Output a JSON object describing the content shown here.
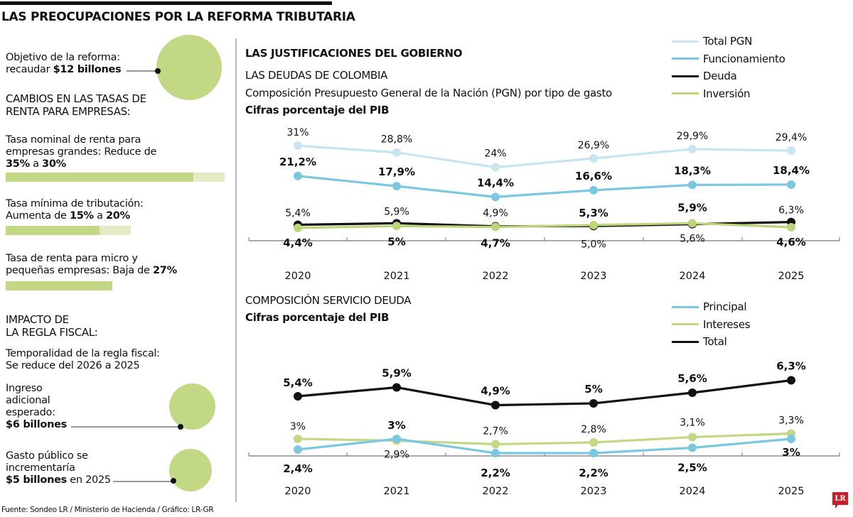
{
  "header": {
    "title": "LAS PREOCUPACIONES POR LA REFORMA TRIBUTARIA"
  },
  "left_panel": {
    "objective": {
      "line1": "Objetivo de la reforma:",
      "line2_prefix": "recaudar ",
      "line2_bold": "$12 billones"
    },
    "rates_heading": {
      "line1": "CAMBIOS EN LAS TASAS DE",
      "line2": "RENTA PARA EMPRESAS:"
    },
    "rates": [
      {
        "line1": "Tasa nominal de renta para",
        "line2": "empresas grandes: Reduce de",
        "from_bold": "35%",
        "connector": " a ",
        "to_bold": "30%",
        "bar_value": 30,
        "bar_max": 35
      },
      {
        "line1": "Tasa mínima de tributación:",
        "line2_prefix": "Aumenta de ",
        "from_bold": "15%",
        "connector": " a ",
        "to_bold": "20%",
        "bar_value": 15,
        "bar_max": 20
      },
      {
        "line1": "Tasa de renta para micro y",
        "line2_prefix": "pequeñas empresas: Baja de ",
        "value_bold": "27%",
        "bar_value": 27
      }
    ],
    "fiscal_heading": {
      "line1": "IMPACTO DE",
      "line2": "LA REGLA FISCAL:"
    },
    "fiscal_temporality": {
      "line1": "Temporalidad de la regla fiscal:",
      "line2": "Se reduce del 2026 a 2025"
    },
    "additional_income": {
      "line1": "Ingreso",
      "line2": "adicional",
      "line3": "esperado:",
      "bold": "$6 billones"
    },
    "public_spending": {
      "line1": "Gasto público se",
      "line2": "incrementaría",
      "bold": "$5 billones",
      "suffix": " en 2025"
    }
  },
  "right_panel": {
    "heading": "LAS JUSTIFICACIONES DEL GOBIERNO",
    "chart1_title": "LAS DEUDAS DE COLOMBIA",
    "chart1_subtitle": "Composición Presupuesto General de la Nación (PGN) por tipo de gasto",
    "chart1_units": "Cifras porcentaje del PIB",
    "chart2_title": "COMPOSICIÓN SERVICIO DEUDA",
    "chart2_units": "Cifras porcentaje del PIB"
  },
  "footer": {
    "source": "Fuente: Sondeo LR / Ministerio de Hacienda / Gráfico: LR-GR",
    "logo": "LR"
  },
  "colors": {
    "green": "#c2d885",
    "green_light": "#e3ecc4",
    "total_pgn": "#c6e5f1",
    "funcionamiento": "#7cc7e0",
    "deuda": "#111111",
    "inversion": "#bcd57a",
    "principal": "#7cc7e0",
    "intereses": "#c2d885",
    "total": "#111111",
    "logo_red": "#c8202a"
  },
  "chart_data": [
    {
      "type": "line",
      "title": "LAS DEUDAS DE COLOMBIA",
      "subtitle": "Composición Presupuesto General de la Nación (PGN) por tipo de gasto",
      "ylabel": "Cifras porcentaje del PIB",
      "xlabel": "",
      "categories": [
        "2020",
        "2021",
        "2022",
        "2023",
        "2024",
        "2025"
      ],
      "ylim": [
        0,
        32
      ],
      "grid": false,
      "legend_position": "top-right",
      "series": [
        {
          "name": "Total PGN",
          "color": "#c6e5f1",
          "values": [
            31,
            28.8,
            24,
            26.9,
            29.9,
            29.4
          ],
          "labels": [
            "31%",
            "28,8%",
            "24%",
            "26,9%",
            "29,9%",
            "29,4%"
          ],
          "label_bold": false
        },
        {
          "name": "Funcionamiento",
          "color": "#7cc7e0",
          "values": [
            21.2,
            17.9,
            14.4,
            16.6,
            18.3,
            18.4
          ],
          "labels": [
            "21,2%",
            "17,9%",
            "14,4%",
            "16,6%",
            "18,3%",
            "18,4%"
          ],
          "label_bold": true
        },
        {
          "name": "Deuda",
          "color": "#111111",
          "values": [
            5.4,
            5.9,
            4.9,
            5.0,
            5.6,
            6.3
          ],
          "labels": [
            "5,4%",
            "5,9%",
            "4,9%",
            "5,0%",
            "5,6%",
            "6,3%"
          ],
          "label_bold": false
        },
        {
          "name": "Inversión",
          "color": "#bcd57a",
          "values": [
            4.4,
            5,
            4.7,
            5.3,
            5.9,
            4.6
          ],
          "labels": [
            "4,4%",
            "5%",
            "4,7%",
            "5,3%",
            "5,9%",
            "4,6%"
          ],
          "label_bold": true
        }
      ]
    },
    {
      "type": "line",
      "title": "COMPOSICIÓN SERVICIO DEUDA",
      "ylabel": "Cifras porcentaje del PIB",
      "xlabel": "",
      "categories": [
        "2020",
        "2021",
        "2022",
        "2023",
        "2024",
        "2025"
      ],
      "ylim": [
        2,
        7
      ],
      "grid": false,
      "legend_position": "top-right",
      "series": [
        {
          "name": "Principal",
          "color": "#7cc7e0",
          "values": [
            2.4,
            3,
            2.2,
            2.2,
            2.5,
            3
          ],
          "labels": [
            "2,4%",
            "3%",
            "2,2%",
            "2,2%",
            "2,5%",
            "3%"
          ],
          "label_bold": true
        },
        {
          "name": "Intereses",
          "color": "#c2d885",
          "values": [
            3,
            2.9,
            2.7,
            2.8,
            3.1,
            3.3
          ],
          "labels": [
            "3%",
            "2,9%",
            "2,7%",
            "2,8%",
            "3,1%",
            "3,3%"
          ],
          "label_bold": false
        },
        {
          "name": "Total",
          "color": "#111111",
          "values": [
            5.4,
            5.9,
            4.9,
            5,
            5.6,
            6.3
          ],
          "labels": [
            "5,4%",
            "5,9%",
            "4,9%",
            "5%",
            "5,6%",
            "6,3%"
          ],
          "label_bold": true
        }
      ]
    }
  ]
}
